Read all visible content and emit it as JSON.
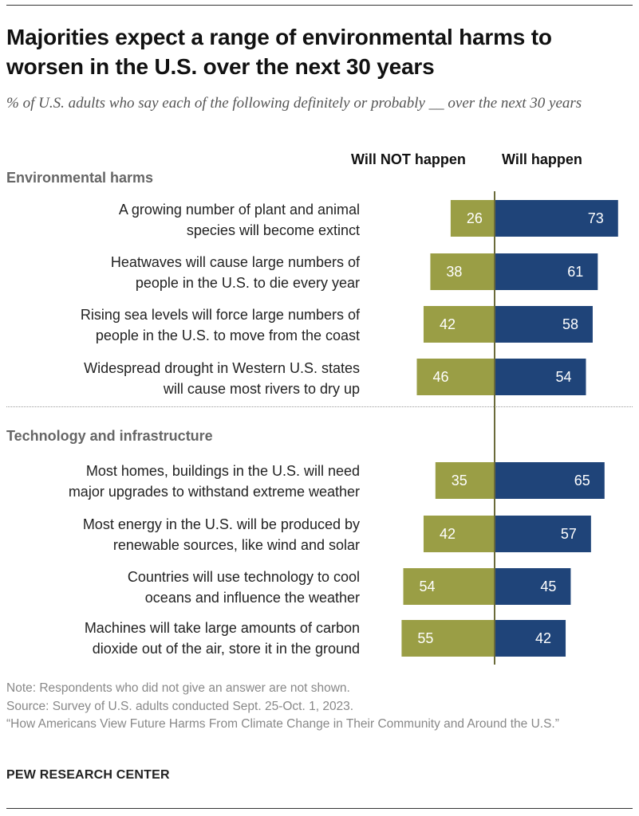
{
  "title": "Majorities expect a range of environmental harms to worsen in the U.S. over the next 30 years",
  "subtitle": "% of U.S. adults who say each of the following definitely or probably __ over the next 30 years",
  "column_headers": {
    "not": "Will NOT happen",
    "will": "Will happen"
  },
  "colors": {
    "not": "#9a9e45",
    "will": "#1f4479",
    "axis": "#6b6b3a"
  },
  "chart_data": {
    "type": "bar",
    "orientation": "horizontal-diverging",
    "series": [
      {
        "name": "Will NOT happen",
        "color": "#9a9e45"
      },
      {
        "name": "Will happen",
        "color": "#1f4479"
      }
    ],
    "sections": [
      {
        "name": "Environmental harms",
        "items": [
          {
            "label": [
              "A growing number of plant and animal",
              "species will become extinct"
            ],
            "not": 26,
            "will": 73
          },
          {
            "label": [
              "Heatwaves will cause large numbers of",
              "people in the U.S. to die every year"
            ],
            "not": 38,
            "will": 61
          },
          {
            "label": [
              "Rising sea levels will force large numbers of",
              "people in the U.S. to move from the coast"
            ],
            "not": 42,
            "will": 58
          },
          {
            "label": [
              "Widespread drought in Western U.S. states",
              "will cause most rivers to dry up"
            ],
            "not": 46,
            "will": 54
          }
        ]
      },
      {
        "name": "Technology and infrastructure",
        "items": [
          {
            "label": [
              "Most homes, buildings in the U.S. will need",
              "major upgrades to withstand extreme weather"
            ],
            "not": 35,
            "will": 65
          },
          {
            "label": [
              "Most energy in the U.S. will be produced by",
              "renewable sources, like wind and solar"
            ],
            "not": 42,
            "will": 57
          },
          {
            "label": [
              "Countries will use technology to cool",
              "oceans and influence the weather"
            ],
            "not": 54,
            "will": 45
          },
          {
            "label": [
              "Machines will take large amounts of carbon",
              "dioxide out of the air, store it in the ground"
            ],
            "not": 55,
            "will": 42
          }
        ]
      }
    ]
  },
  "notes": [
    "Note: Respondents who did not give an answer are not shown.",
    "Source: Survey of U.S. adults conducted Sept. 25-Oct. 1, 2023.",
    "“How Americans View Future Harms From Climate Change in Their Community and Around the U.S.”"
  ],
  "brand": "PEW RESEARCH CENTER"
}
